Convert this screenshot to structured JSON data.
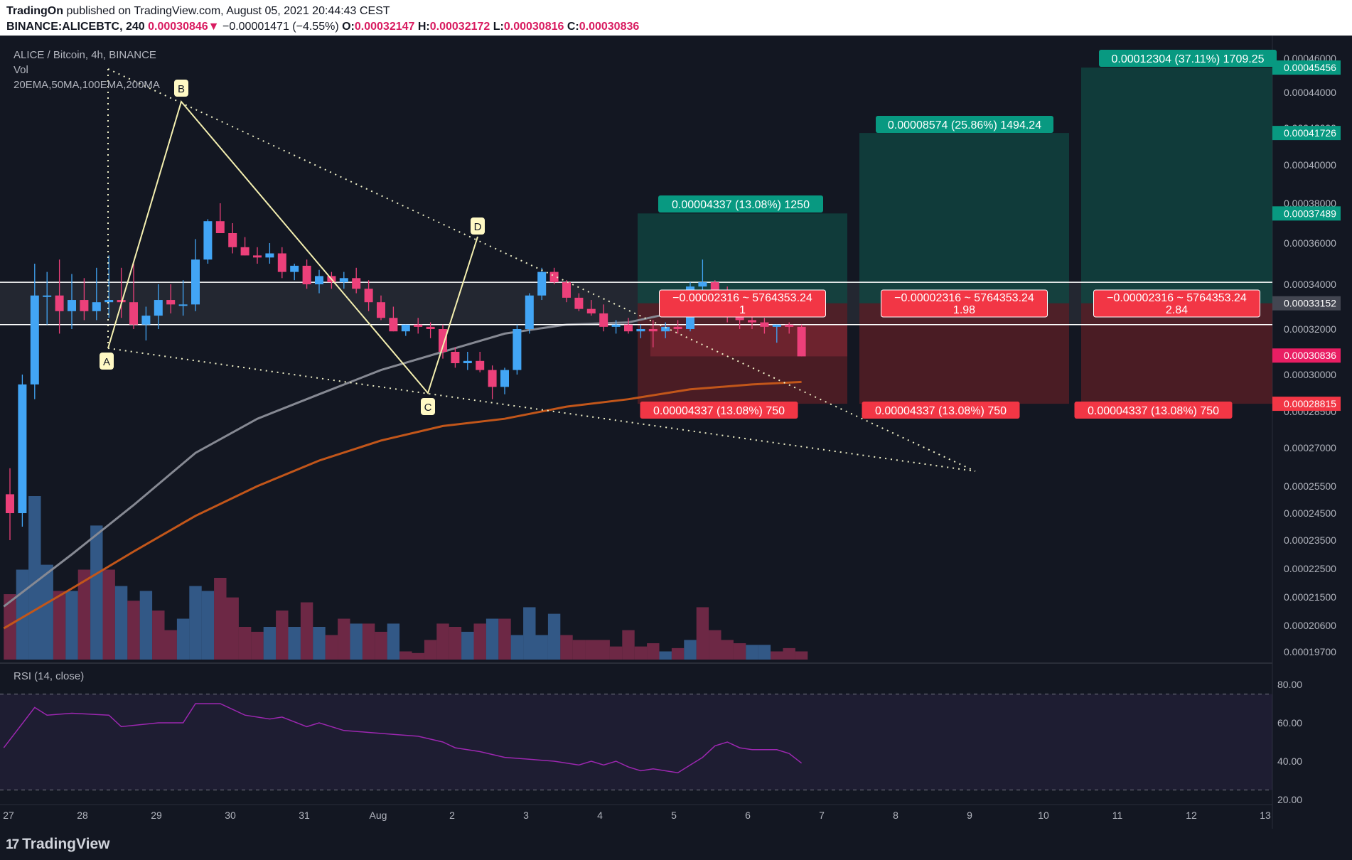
{
  "header": {
    "publisher": "TradingOn",
    "published_text": " published on TradingView.com, August 05, 2021 20:44:43 CEST",
    "symbol": "BINANCE:ALICEBTC, 240",
    "last": "0.00030846",
    "arrow": "▼",
    "change": "−0.00001471 (−4.55%)",
    "o_label": "O:",
    "o": "0.00032147",
    "h_label": "H:",
    "h": "0.00032172",
    "l_label": "L:",
    "l": "0.00030816",
    "c_label": "C:",
    "c": "0.00030836"
  },
  "legend": {
    "title": "ALICE / Bitcoin, 4h, BINANCE",
    "vol": "Vol",
    "mas": "20EMA,50MA,100EMA,200MA",
    "rsi": "RSI (14, close)"
  },
  "footer": {
    "logo_mark": "17",
    "logo_text": "TradingView"
  },
  "chart_data": {
    "type": "candlestick",
    "symbol": "ALICE/BTC",
    "interval": "4h",
    "exchange": "BINANCE",
    "y_ticks": [
      "0.00046000",
      "0.00044000",
      "0.00042000",
      "0.00040000",
      "0.00038000",
      "0.00036000",
      "0.00034000",
      "0.00032000",
      "0.00030000",
      "0.00028500",
      "0.00027000",
      "0.00025500",
      "0.00024500",
      "0.00023500",
      "0.00022500",
      "0.00021500",
      "0.00020600",
      "0.00019700"
    ],
    "price_labels": [
      {
        "text": "0.00045456",
        "price": 0.00045456,
        "color": "#089981"
      },
      {
        "text": "0.00041726",
        "price": 0.00041726,
        "color": "#089981"
      },
      {
        "text": "0.00037489",
        "price": 0.00037489,
        "color": "#089981"
      },
      {
        "text": "0.00033152",
        "price": 0.00033152,
        "color": "#434651"
      },
      {
        "text": "0.00030836",
        "price": 0.00030836,
        "color": "#e91e63"
      },
      {
        "text": "0.00028815",
        "price": 0.00028815,
        "color": "#f23645"
      }
    ],
    "x_ticks": [
      "27",
      "28",
      "29",
      "30",
      "31",
      "Aug",
      "2",
      "3",
      "4",
      "5",
      "6",
      "7",
      "8",
      "9",
      "10",
      "11",
      "12",
      "13"
    ],
    "candles": [
      {
        "t": 0,
        "o": 0.000252,
        "h": 0.000262,
        "l": 0.000235,
        "c": 0.000245
      },
      {
        "t": 1,
        "o": 0.000245,
        "h": 0.0003,
        "l": 0.00024,
        "c": 0.000296
      },
      {
        "t": 2,
        "o": 0.000296,
        "h": 0.00035,
        "l": 0.00029,
        "c": 0.000335
      },
      {
        "t": 3,
        "o": 0.000335,
        "h": 0.000346,
        "l": 0.000322,
        "c": 0.000335
      },
      {
        "t": 4,
        "o": 0.000335,
        "h": 0.000352,
        "l": 0.000318,
        "c": 0.000328
      },
      {
        "t": 5,
        "o": 0.000328,
        "h": 0.000345,
        "l": 0.00032,
        "c": 0.000333
      },
      {
        "t": 6,
        "o": 0.000333,
        "h": 0.000343,
        "l": 0.000324,
        "c": 0.000328
      },
      {
        "t": 7,
        "o": 0.000328,
        "h": 0.000348,
        "l": 0.000324,
        "c": 0.000332
      },
      {
        "t": 8,
        "o": 0.000332,
        "h": 0.000354,
        "l": 0.000325,
        "c": 0.000333
      },
      {
        "t": 9,
        "o": 0.000333,
        "h": 0.000348,
        "l": 0.000325,
        "c": 0.000332
      },
      {
        "t": 10,
        "o": 0.000332,
        "h": 0.00035,
        "l": 0.00032,
        "c": 0.000322
      },
      {
        "t": 11,
        "o": 0.000322,
        "h": 0.00033,
        "l": 0.000315,
        "c": 0.000326
      },
      {
        "t": 12,
        "o": 0.000326,
        "h": 0.00034,
        "l": 0.00032,
        "c": 0.000333
      },
      {
        "t": 13,
        "o": 0.000333,
        "h": 0.00034,
        "l": 0.000327,
        "c": 0.000331
      },
      {
        "t": 14,
        "o": 0.000331,
        "h": 0.000342,
        "l": 0.000326,
        "c": 0.000331
      },
      {
        "t": 15,
        "o": 0.000331,
        "h": 0.000362,
        "l": 0.000328,
        "c": 0.000352
      },
      {
        "t": 16,
        "o": 0.000352,
        "h": 0.000372,
        "l": 0.00035,
        "c": 0.000371
      },
      {
        "t": 17,
        "o": 0.000371,
        "h": 0.00038,
        "l": 0.000365,
        "c": 0.000365
      },
      {
        "t": 18,
        "o": 0.000365,
        "h": 0.00037,
        "l": 0.000355,
        "c": 0.000358
      },
      {
        "t": 19,
        "o": 0.000358,
        "h": 0.000363,
        "l": 0.000354,
        "c": 0.000354
      },
      {
        "t": 20,
        "o": 0.000354,
        "h": 0.000358,
        "l": 0.00035,
        "c": 0.000353
      },
      {
        "t": 21,
        "o": 0.000353,
        "h": 0.00036,
        "l": 0.00035,
        "c": 0.000355
      },
      {
        "t": 22,
        "o": 0.000355,
        "h": 0.000358,
        "l": 0.000343,
        "c": 0.000346
      },
      {
        "t": 23,
        "o": 0.000346,
        "h": 0.00035,
        "l": 0.000342,
        "c": 0.000349
      },
      {
        "t": 24,
        "o": 0.000349,
        "h": 0.000352,
        "l": 0.000338,
        "c": 0.00034
      },
      {
        "t": 25,
        "o": 0.00034,
        "h": 0.000347,
        "l": 0.000336,
        "c": 0.000344
      },
      {
        "t": 26,
        "o": 0.000344,
        "h": 0.000346,
        "l": 0.000338,
        "c": 0.000341
      },
      {
        "t": 27,
        "o": 0.000341,
        "h": 0.000346,
        "l": 0.000338,
        "c": 0.000343
      },
      {
        "t": 28,
        "o": 0.000343,
        "h": 0.000348,
        "l": 0.000336,
        "c": 0.000338
      },
      {
        "t": 29,
        "o": 0.000338,
        "h": 0.000342,
        "l": 0.000328,
        "c": 0.000332
      },
      {
        "t": 30,
        "o": 0.000332,
        "h": 0.000335,
        "l": 0.000324,
        "c": 0.000325
      },
      {
        "t": 31,
        "o": 0.000325,
        "h": 0.00033,
        "l": 0.000319,
        "c": 0.000319
      },
      {
        "t": 32,
        "o": 0.000319,
        "h": 0.000322,
        "l": 0.000317,
        "c": 0.000322
      },
      {
        "t": 33,
        "o": 0.000322,
        "h": 0.000325,
        "l": 0.000318,
        "c": 0.000321
      },
      {
        "t": 34,
        "o": 0.000321,
        "h": 0.000323,
        "l": 0.000316,
        "c": 0.00032
      },
      {
        "t": 35,
        "o": 0.00032,
        "h": 0.000322,
        "l": 0.000307,
        "c": 0.00031
      },
      {
        "t": 36,
        "o": 0.00031,
        "h": 0.000312,
        "l": 0.000303,
        "c": 0.000305
      },
      {
        "t": 37,
        "o": 0.000305,
        "h": 0.00031,
        "l": 0.000302,
        "c": 0.000306
      },
      {
        "t": 38,
        "o": 0.000306,
        "h": 0.00031,
        "l": 0.000301,
        "c": 0.000302
      },
      {
        "t": 39,
        "o": 0.000302,
        "h": 0.000304,
        "l": 0.00029,
        "c": 0.000295
      },
      {
        "t": 40,
        "o": 0.000295,
        "h": 0.000303,
        "l": 0.000292,
        "c": 0.000302
      },
      {
        "t": 41,
        "o": 0.000302,
        "h": 0.000322,
        "l": 0.0003,
        "c": 0.00032
      },
      {
        "t": 42,
        "o": 0.00032,
        "h": 0.000336,
        "l": 0.000318,
        "c": 0.000335
      },
      {
        "t": 43,
        "o": 0.000335,
        "h": 0.000348,
        "l": 0.000333,
        "c": 0.000346
      },
      {
        "t": 44,
        "o": 0.000346,
        "h": 0.000348,
        "l": 0.00034,
        "c": 0.000341
      },
      {
        "t": 45,
        "o": 0.000341,
        "h": 0.000342,
        "l": 0.000332,
        "c": 0.000334
      },
      {
        "t": 46,
        "o": 0.000334,
        "h": 0.000336,
        "l": 0.000328,
        "c": 0.000329
      },
      {
        "t": 47,
        "o": 0.000329,
        "h": 0.000333,
        "l": 0.000326,
        "c": 0.000327
      },
      {
        "t": 48,
        "o": 0.000327,
        "h": 0.000331,
        "l": 0.000319,
        "c": 0.000321
      },
      {
        "t": 49,
        "o": 0.000321,
        "h": 0.000324,
        "l": 0.000318,
        "c": 0.000322
      },
      {
        "t": 50,
        "o": 0.000322,
        "h": 0.000325,
        "l": 0.000318,
        "c": 0.000319
      },
      {
        "t": 51,
        "o": 0.000319,
        "h": 0.000322,
        "l": 0.000316,
        "c": 0.00032
      },
      {
        "t": 52,
        "o": 0.00032,
        "h": 0.000324,
        "l": 0.000312,
        "c": 0.000319
      },
      {
        "t": 53,
        "o": 0.000319,
        "h": 0.000323,
        "l": 0.000316,
        "c": 0.000321
      },
      {
        "t": 54,
        "o": 0.000321,
        "h": 0.000324,
        "l": 0.000318,
        "c": 0.00032
      },
      {
        "t": 55,
        "o": 0.00032,
        "h": 0.000341,
        "l": 0.000319,
        "c": 0.000339
      },
      {
        "t": 56,
        "o": 0.000339,
        "h": 0.000352,
        "l": 0.000336,
        "c": 0.000341
      },
      {
        "t": 57,
        "o": 0.000341,
        "h": 0.000342,
        "l": 0.000334,
        "c": 0.000337
      },
      {
        "t": 58,
        "o": 0.000337,
        "h": 0.000339,
        "l": 0.000323,
        "c": 0.000328
      },
      {
        "t": 59,
        "o": 0.000328,
        "h": 0.00033,
        "l": 0.00032,
        "c": 0.000324
      },
      {
        "t": 60,
        "o": 0.000324,
        "h": 0.000327,
        "l": 0.00032,
        "c": 0.000323
      },
      {
        "t": 61,
        "o": 0.000323,
        "h": 0.000325,
        "l": 0.000318,
        "c": 0.000321
      },
      {
        "t": 62,
        "o": 0.000321,
        "h": 0.000322,
        "l": 0.000314,
        "c": 0.000322
      },
      {
        "t": 63,
        "o": 0.000322,
        "h": 0.000323,
        "l": 0.000318,
        "c": 0.000321
      },
      {
        "t": 64,
        "o": 0.000321,
        "h": 0.000322,
        "l": 0.000308,
        "c": 0.000308
      }
    ],
    "volume": [
      {
        "t": 0,
        "v": 0.4,
        "up": false
      },
      {
        "t": 1,
        "v": 0.55,
        "up": true
      },
      {
        "t": 2,
        "v": 1.0,
        "up": true
      },
      {
        "t": 3,
        "v": 0.58,
        "up": true
      },
      {
        "t": 4,
        "v": 0.42,
        "up": false
      },
      {
        "t": 5,
        "v": 0.42,
        "up": true
      },
      {
        "t": 6,
        "v": 0.55,
        "up": false
      },
      {
        "t": 7,
        "v": 0.82,
        "up": true
      },
      {
        "t": 8,
        "v": 0.55,
        "up": false
      },
      {
        "t": 9,
        "v": 0.45,
        "up": true
      },
      {
        "t": 10,
        "v": 0.36,
        "up": false
      },
      {
        "t": 11,
        "v": 0.42,
        "up": true
      },
      {
        "t": 12,
        "v": 0.3,
        "up": false
      },
      {
        "t": 13,
        "v": 0.18,
        "up": false
      },
      {
        "t": 14,
        "v": 0.25,
        "up": true
      },
      {
        "t": 15,
        "v": 0.45,
        "up": true
      },
      {
        "t": 16,
        "v": 0.42,
        "up": true
      },
      {
        "t": 17,
        "v": 0.5,
        "up": false
      },
      {
        "t": 18,
        "v": 0.38,
        "up": false
      },
      {
        "t": 19,
        "v": 0.2,
        "up": false
      },
      {
        "t": 20,
        "v": 0.17,
        "up": false
      },
      {
        "t": 21,
        "v": 0.2,
        "up": true
      },
      {
        "t": 22,
        "v": 0.3,
        "up": false
      },
      {
        "t": 23,
        "v": 0.2,
        "up": true
      },
      {
        "t": 24,
        "v": 0.35,
        "up": false
      },
      {
        "t": 25,
        "v": 0.2,
        "up": true
      },
      {
        "t": 26,
        "v": 0.15,
        "up": false
      },
      {
        "t": 27,
        "v": 0.25,
        "up": false
      },
      {
        "t": 28,
        "v": 0.22,
        "up": true
      },
      {
        "t": 29,
        "v": 0.22,
        "up": false
      },
      {
        "t": 30,
        "v": 0.17,
        "up": false
      },
      {
        "t": 31,
        "v": 0.22,
        "up": true
      },
      {
        "t": 32,
        "v": 0.05,
        "up": false
      },
      {
        "t": 33,
        "v": 0.04,
        "up": false
      },
      {
        "t": 34,
        "v": 0.12,
        "up": false
      },
      {
        "t": 35,
        "v": 0.22,
        "up": false
      },
      {
        "t": 36,
        "v": 0.2,
        "up": false
      },
      {
        "t": 37,
        "v": 0.17,
        "up": true
      },
      {
        "t": 38,
        "v": 0.22,
        "up": false
      },
      {
        "t": 39,
        "v": 0.25,
        "up": true
      },
      {
        "t": 40,
        "v": 0.25,
        "up": false
      },
      {
        "t": 41,
        "v": 0.15,
        "up": true
      },
      {
        "t": 42,
        "v": 0.32,
        "up": true
      },
      {
        "t": 43,
        "v": 0.15,
        "up": true
      },
      {
        "t": 44,
        "v": 0.28,
        "up": true
      },
      {
        "t": 45,
        "v": 0.15,
        "up": false
      },
      {
        "t": 46,
        "v": 0.12,
        "up": false
      },
      {
        "t": 47,
        "v": 0.12,
        "up": false
      },
      {
        "t": 48,
        "v": 0.12,
        "up": false
      },
      {
        "t": 49,
        "v": 0.08,
        "up": false
      },
      {
        "t": 50,
        "v": 0.18,
        "up": false
      },
      {
        "t": 51,
        "v": 0.08,
        "up": false
      },
      {
        "t": 52,
        "v": 0.1,
        "up": false
      },
      {
        "t": 53,
        "v": 0.05,
        "up": true
      },
      {
        "t": 54,
        "v": 0.07,
        "up": false
      },
      {
        "t": 55,
        "v": 0.12,
        "up": true
      },
      {
        "t": 56,
        "v": 0.32,
        "up": false
      },
      {
        "t": 57,
        "v": 0.18,
        "up": false
      },
      {
        "t": 58,
        "v": 0.12,
        "up": false
      },
      {
        "t": 59,
        "v": 0.1,
        "up": false
      },
      {
        "t": 60,
        "v": 0.09,
        "up": true
      },
      {
        "t": 61,
        "v": 0.09,
        "up": true
      },
      {
        "t": 62,
        "v": 0.05,
        "up": false
      },
      {
        "t": 63,
        "v": 0.07,
        "up": false
      },
      {
        "t": 64,
        "v": 0.05,
        "up": false
      }
    ],
    "ma_slow": [
      [
        -0.5,
        0.000212
      ],
      [
        5,
        0.00023
      ],
      [
        10,
        0.000248
      ],
      [
        15,
        0.000268
      ],
      [
        20,
        0.000282
      ],
      [
        25,
        0.000292
      ],
      [
        30,
        0.000302
      ],
      [
        35,
        0.00031
      ],
      [
        40,
        0.000318
      ],
      [
        45,
        0.000322
      ],
      [
        50,
        0.000323
      ],
      [
        55,
        0.000329
      ],
      [
        58,
        0.000332
      ]
    ],
    "ma_orange": [
      [
        -0.5,
        0.000205
      ],
      [
        5,
        0.000218
      ],
      [
        10,
        0.000231
      ],
      [
        15,
        0.000244
      ],
      [
        20,
        0.000255
      ],
      [
        25,
        0.000265
      ],
      [
        30,
        0.000273
      ],
      [
        35,
        0.000279
      ],
      [
        40,
        0.000282
      ],
      [
        45,
        0.000287
      ],
      [
        50,
        0.00029
      ],
      [
        55,
        0.000294
      ],
      [
        60,
        0.000296
      ],
      [
        64,
        0.000297
      ]
    ],
    "resistance": [
      0.000341,
      0.000322
    ],
    "rsi": {
      "levels": [
        "80.00",
        "60.00",
        "40.00",
        "20.00"
      ],
      "upper": 75,
      "lower": 25,
      "values": [
        [
          -0.5,
          47
        ],
        [
          2,
          68
        ],
        [
          3,
          64
        ],
        [
          5,
          65
        ],
        [
          8,
          64
        ],
        [
          9,
          58
        ],
        [
          12,
          60
        ],
        [
          14,
          60
        ],
        [
          15,
          70
        ],
        [
          17,
          70
        ],
        [
          19,
          64
        ],
        [
          21,
          62
        ],
        [
          22,
          63
        ],
        [
          24,
          58
        ],
        [
          25,
          60
        ],
        [
          27,
          56
        ],
        [
          29,
          55
        ],
        [
          31,
          54
        ],
        [
          33,
          53
        ],
        [
          35,
          50
        ],
        [
          36,
          47
        ],
        [
          38,
          45
        ],
        [
          40,
          42
        ],
        [
          42,
          41
        ],
        [
          44,
          40
        ],
        [
          46,
          38
        ],
        [
          47,
          40
        ],
        [
          48,
          38
        ],
        [
          49,
          40
        ],
        [
          50,
          37
        ],
        [
          51,
          35
        ],
        [
          52,
          36
        ],
        [
          53,
          35
        ],
        [
          54,
          34
        ],
        [
          55,
          38
        ],
        [
          56,
          42
        ],
        [
          57,
          48
        ],
        [
          58,
          50
        ],
        [
          59,
          47
        ],
        [
          60,
          46
        ],
        [
          62,
          46
        ],
        [
          63,
          44
        ],
        [
          64,
          39
        ]
      ]
    },
    "pattern_labels": [
      "A",
      "B",
      "C",
      "D"
    ],
    "positions": [
      {
        "target": "0.00004337 (13.08%) 1250",
        "stop": "0.00004337 (13.08%) 750",
        "info": "−0.00002316 ~ 5764353.24",
        "ratio": "1"
      },
      {
        "target": "0.00008574 (25.86%) 1494.24",
        "stop": "0.00004337 (13.08%) 750",
        "info": "−0.00002316 ~ 5764353.24",
        "ratio": "1.98"
      },
      {
        "target": "0.00012304 (37.11%) 1709.25",
        "stop": "0.00004337 (13.08%) 750",
        "info": "−0.00002316 ~ 5764353.24",
        "ratio": "2.84"
      }
    ],
    "colors": {
      "up": "#42a5f5",
      "down": "#ec407a",
      "bg": "#131722",
      "target": "#089981",
      "stop": "#f23645"
    }
  }
}
